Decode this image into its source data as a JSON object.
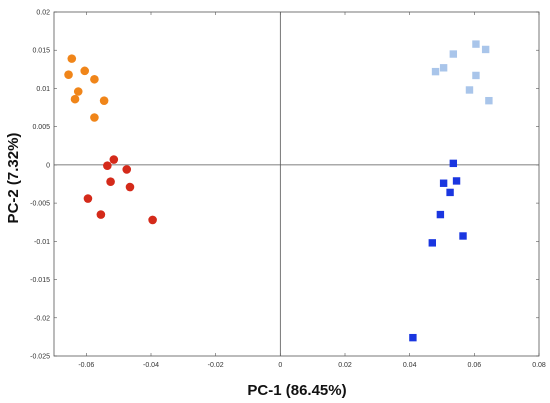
{
  "chart_data": {
    "type": "scatter",
    "xlabel": "PC-1 (86.45%)",
    "ylabel": "PC-2 (7.32%)",
    "xlim": [
      -0.07,
      0.08
    ],
    "ylim": [
      -0.025,
      0.02
    ],
    "x_ticks": [
      -0.06,
      -0.04,
      -0.02,
      0,
      0.02,
      0.04,
      0.06,
      0.08
    ],
    "x_tick_labels": [
      "-0.06",
      "-0.04",
      "-0.02",
      "0",
      "0.02",
      "0.04",
      "0.06",
      "0.08"
    ],
    "y_ticks": [
      -0.025,
      -0.02,
      -0.015,
      -0.01,
      -0.005,
      0,
      0.005,
      0.01,
      0.015,
      0.02
    ],
    "y_tick_labels": [
      "-0.025",
      "-0.02",
      "-0.015",
      "-0.01",
      "-0.005",
      "0",
      "0.005",
      "0.01",
      "0.015",
      "0.02"
    ],
    "zero_lines": true,
    "grid": false,
    "series": [
      {
        "marker": "circle",
        "color": "#f08519",
        "points": [
          [
            -0.0645,
            0.0139
          ],
          [
            -0.0655,
            0.0118
          ],
          [
            -0.0605,
            0.0123
          ],
          [
            -0.0575,
            0.0112
          ],
          [
            -0.0625,
            0.0096
          ],
          [
            -0.0635,
            0.0086
          ],
          [
            -0.0545,
            0.0084
          ],
          [
            -0.0575,
            0.0062
          ]
        ]
      },
      {
        "marker": "circle",
        "color": "#d42a1a",
        "points": [
          [
            -0.0515,
            0.0007
          ],
          [
            -0.0535,
            -0.0001
          ],
          [
            -0.0475,
            -0.0006
          ],
          [
            -0.0525,
            -0.0022
          ],
          [
            -0.0465,
            -0.0029
          ],
          [
            -0.0595,
            -0.0044
          ],
          [
            -0.0555,
            -0.0065
          ],
          [
            -0.0395,
            -0.0072
          ]
        ]
      },
      {
        "marker": "square",
        "color": "#a9c5ea",
        "points": [
          [
            0.0605,
            0.0158
          ],
          [
            0.0635,
            0.0151
          ],
          [
            0.0535,
            0.0145
          ],
          [
            0.0505,
            0.0127
          ],
          [
            0.048,
            0.0122
          ],
          [
            0.0605,
            0.0117
          ],
          [
            0.0585,
            0.0098
          ],
          [
            0.0645,
            0.0084
          ]
        ]
      },
      {
        "marker": "square",
        "color": "#1a36e0",
        "points": [
          [
            0.0535,
            0.0002
          ],
          [
            0.0505,
            -0.0024
          ],
          [
            0.0545,
            -0.0021
          ],
          [
            0.0525,
            -0.0036
          ],
          [
            0.0495,
            -0.0065
          ],
          [
            0.0565,
            -0.0093
          ],
          [
            0.047,
            -0.0102
          ],
          [
            0.041,
            -0.0226
          ]
        ]
      }
    ]
  }
}
